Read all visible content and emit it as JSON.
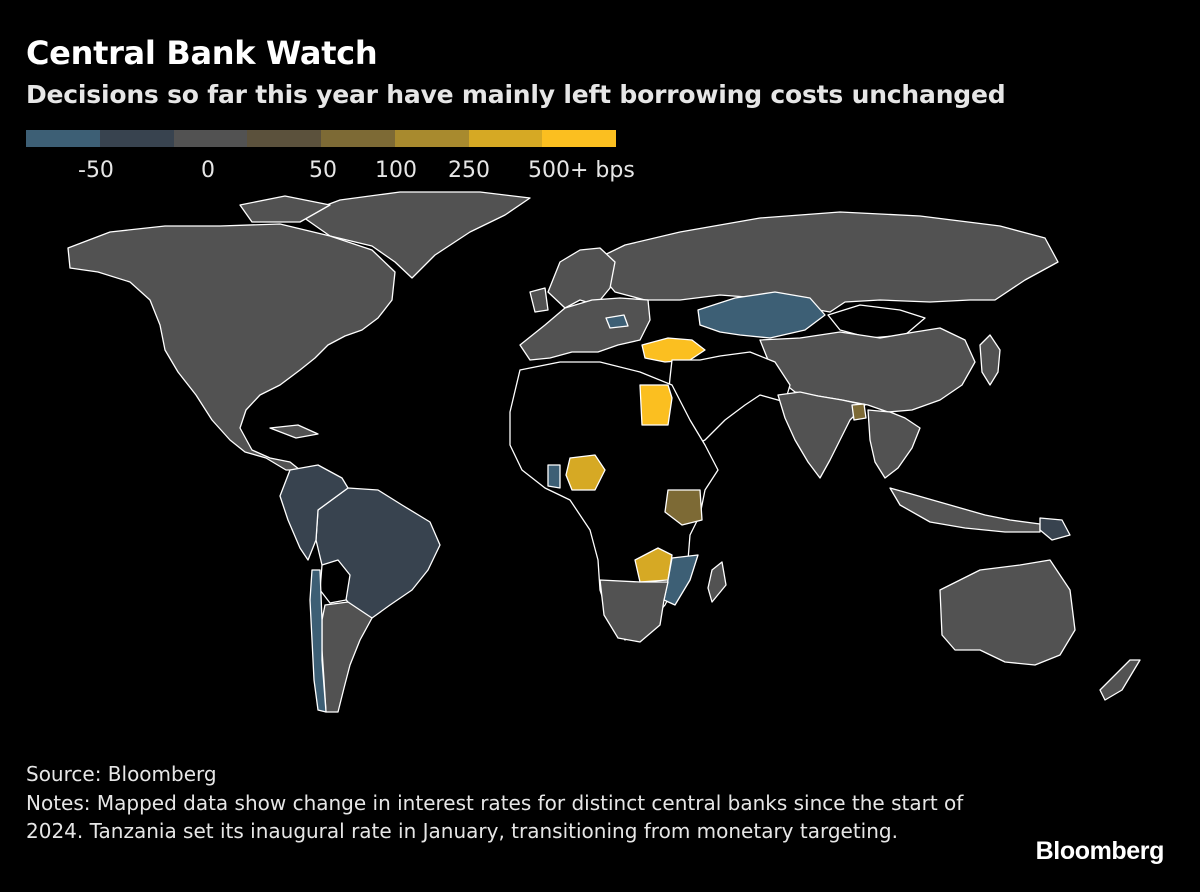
{
  "header": {
    "title": "Central Bank Watch",
    "subtitle": "Decisions so far this year have mainly left borrowing costs unchanged"
  },
  "legend": {
    "colors": [
      "#3d5f75",
      "#38434f",
      "#525252",
      "#5b513c",
      "#7d6a35",
      "#a88a2e",
      "#d6a924",
      "#fbbf20"
    ],
    "labels": [
      "-50",
      "0",
      "50",
      "100",
      "250",
      "500+ bps"
    ]
  },
  "map_colors": {
    "no_data": "#000000",
    "unchanged": "#525252",
    "cut_large": "#3d5f75",
    "cut_small": "#38434f",
    "hike_small": "#7d6a35",
    "hike_mid": "#d6a924",
    "hike_large": "#fbbf20"
  },
  "footer": {
    "source": "Source: Bloomberg",
    "notes": "Notes: Mapped data show change in interest rates for distinct central banks since the start of 2024. Tanzania set its inaugural rate in January, transitioning from monetary targeting."
  },
  "brand": "Bloomberg"
}
